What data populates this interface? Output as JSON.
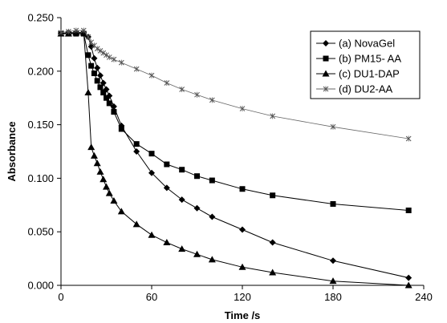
{
  "chart_data": {
    "type": "line",
    "xlabel": "Time /s",
    "ylabel": "Absorbance",
    "xlim": [
      0,
      240
    ],
    "ylim": [
      0,
      0.25
    ],
    "x_ticks": [
      0,
      60,
      120,
      180,
      240
    ],
    "y_ticks": [
      0,
      0.05,
      0.1,
      0.15,
      0.2,
      0.25
    ],
    "x_tick_labels": [
      "0",
      "60",
      "120",
      "180",
      "240"
    ],
    "y_tick_labels": [
      "0.000",
      "0.050",
      "0.100",
      "0.150",
      "0.200",
      "0.250"
    ],
    "grid": false,
    "legend_position": "top-right",
    "series": [
      {
        "name": "(a) NovaGel",
        "marker": "diamond",
        "color": "#000000",
        "x": [
          0,
          5,
          10,
          15,
          18,
          20,
          22,
          24,
          26,
          28,
          30,
          32,
          35,
          40,
          50,
          60,
          70,
          80,
          90,
          100,
          120,
          140,
          180,
          230
        ],
        "y": [
          0.235,
          0.236,
          0.236,
          0.236,
          0.232,
          0.223,
          0.212,
          0.203,
          0.196,
          0.189,
          0.183,
          0.177,
          0.167,
          0.149,
          0.125,
          0.105,
          0.091,
          0.08,
          0.072,
          0.064,
          0.052,
          0.04,
          0.023,
          0.007
        ]
      },
      {
        "name": "(b) PM15- AA",
        "marker": "square",
        "color": "#000000",
        "x": [
          0,
          5,
          10,
          15,
          18,
          20,
          22,
          24,
          26,
          28,
          30,
          32,
          35,
          40,
          50,
          60,
          70,
          80,
          90,
          100,
          120,
          140,
          180,
          230
        ],
        "y": [
          0.235,
          0.235,
          0.235,
          0.235,
          0.215,
          0.205,
          0.198,
          0.191,
          0.185,
          0.18,
          0.175,
          0.17,
          0.162,
          0.146,
          0.132,
          0.123,
          0.113,
          0.108,
          0.102,
          0.098,
          0.09,
          0.084,
          0.076,
          0.07
        ]
      },
      {
        "name": "(c) DU1-DAP",
        "marker": "triangle",
        "color": "#000000",
        "x": [
          0,
          5,
          10,
          15,
          18,
          20,
          22,
          24,
          26,
          28,
          30,
          32,
          35,
          40,
          50,
          60,
          70,
          80,
          90,
          100,
          120,
          140,
          180,
          230
        ],
        "y": [
          0.235,
          0.235,
          0.236,
          0.236,
          0.18,
          0.129,
          0.121,
          0.114,
          0.106,
          0.099,
          0.092,
          0.086,
          0.079,
          0.069,
          0.057,
          0.047,
          0.04,
          0.034,
          0.029,
          0.024,
          0.017,
          0.012,
          0.004,
          0.0
        ]
      },
      {
        "name": "(d) DU2-AA",
        "marker": "x",
        "color": "#000000",
        "x": [
          0,
          5,
          10,
          15,
          18,
          20,
          22,
          24,
          26,
          28,
          30,
          32,
          35,
          40,
          50,
          60,
          70,
          80,
          90,
          100,
          120,
          140,
          180,
          230
        ],
        "y": [
          0.236,
          0.237,
          0.238,
          0.238,
          0.232,
          0.227,
          0.224,
          0.221,
          0.219,
          0.217,
          0.215,
          0.213,
          0.211,
          0.208,
          0.202,
          0.196,
          0.189,
          0.183,
          0.178,
          0.173,
          0.165,
          0.158,
          0.148,
          0.137
        ]
      }
    ]
  }
}
